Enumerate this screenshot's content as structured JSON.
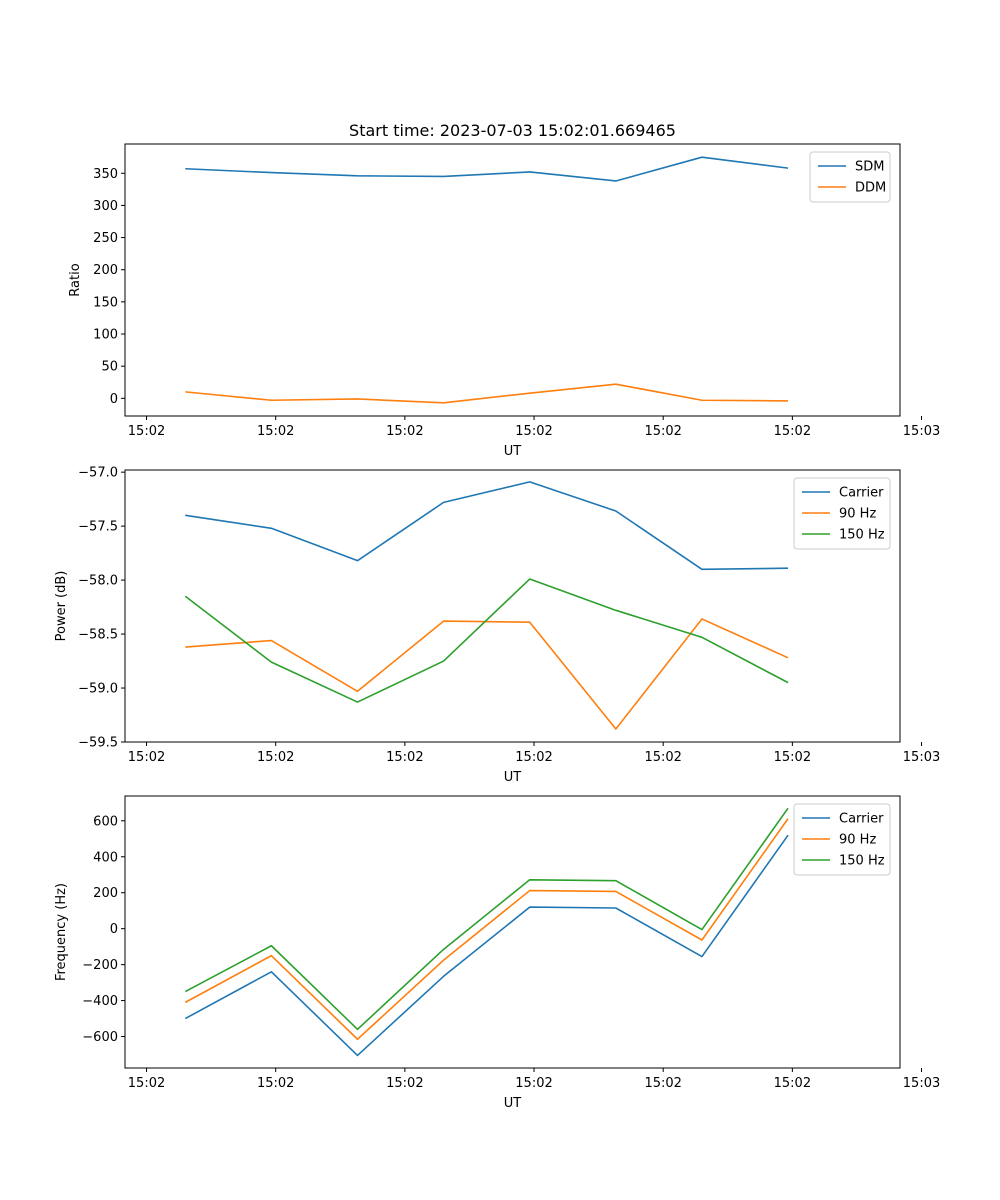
{
  "figure_title": "Start time: 2023-07-03 15:02:01.669465",
  "colors": {
    "blue": "#1f77b4",
    "orange": "#ff7f0e",
    "green": "#2ca02c"
  },
  "chart_data": [
    {
      "type": "line",
      "title": "Start time: 2023-07-03 15:02:01.669465",
      "xlabel": "UT",
      "ylabel": "Ratio",
      "x": [
        1,
        2,
        3,
        4,
        5,
        6,
        7,
        8
      ],
      "xlim": [
        0.3,
        9.3
      ],
      "xticks": [
        0.55,
        2.05,
        3.55,
        5.05,
        6.55,
        8.05,
        9.55
      ],
      "xtick_labels": [
        "15:02",
        "15:02",
        "15:02",
        "15:02",
        "15:02",
        "15:02",
        "15:03"
      ],
      "ylim": [
        -27.5,
        395.5
      ],
      "yticks": [
        0,
        50,
        100,
        150,
        200,
        250,
        300,
        350
      ],
      "ytick_labels": [
        "0",
        "50",
        "100",
        "150",
        "200",
        "250",
        "300",
        "350"
      ],
      "legend_position": "top-right",
      "series": [
        {
          "name": "SDM",
          "color": "#1f77b4",
          "values": [
            357,
            351,
            346,
            345,
            352,
            338,
            375,
            358
          ]
        },
        {
          "name": "DDM",
          "color": "#ff7f0e",
          "values": [
            10,
            -3,
            -1,
            -7,
            8,
            22,
            -3,
            -4
          ]
        }
      ]
    },
    {
      "type": "line",
      "title": "",
      "xlabel": "UT",
      "ylabel": "Power (dB)",
      "x": [
        1,
        2,
        3,
        4,
        5,
        6,
        7,
        8
      ],
      "xlim": [
        0.3,
        9.3
      ],
      "xticks": [
        0.55,
        2.05,
        3.55,
        5.05,
        6.55,
        8.05,
        9.55
      ],
      "xtick_labels": [
        "15:02",
        "15:02",
        "15:02",
        "15:02",
        "15:02",
        "15:02",
        "15:03"
      ],
      "ylim": [
        -59.5,
        -56.98
      ],
      "yticks": [
        -57.0,
        -57.5,
        -58.0,
        -58.5,
        -59.0,
        -59.5
      ],
      "ytick_labels": [
        "−57.0",
        "−57.5",
        "−58.0",
        "−58.5",
        "−59.0",
        "−59.5"
      ],
      "legend_position": "top-right",
      "series": [
        {
          "name": "Carrier",
          "color": "#1f77b4",
          "values": [
            -57.4,
            -57.52,
            -57.82,
            -57.28,
            -57.09,
            -57.36,
            -57.9,
            -57.89
          ]
        },
        {
          "name": "90 Hz",
          "color": "#ff7f0e",
          "values": [
            -58.62,
            -58.56,
            -59.03,
            -58.38,
            -58.39,
            -59.38,
            -58.36,
            -58.72
          ]
        },
        {
          "name": "150 Hz",
          "color": "#2ca02c",
          "values": [
            -58.15,
            -58.76,
            -59.13,
            -58.75,
            -57.99,
            -58.28,
            -58.53,
            -58.95
          ]
        }
      ]
    },
    {
      "type": "line",
      "title": "",
      "xlabel": "UT",
      "ylabel": "Frequency (Hz)",
      "x": [
        1,
        2,
        3,
        4,
        5,
        6,
        7,
        8
      ],
      "xlim": [
        0.3,
        9.3
      ],
      "xticks": [
        0.55,
        2.05,
        3.55,
        5.05,
        6.55,
        8.05,
        9.55
      ],
      "xtick_labels": [
        "15:02",
        "15:02",
        "15:02",
        "15:02",
        "15:02",
        "15:02",
        "15:03"
      ],
      "ylim": [
        -775,
        738
      ],
      "yticks": [
        600,
        400,
        200,
        0,
        -200,
        -400,
        -600
      ],
      "ytick_labels": [
        "600",
        "400",
        "200",
        "0",
        "−200",
        "−400",
        "−600"
      ],
      "legend_position": "top-right",
      "series": [
        {
          "name": "Carrier",
          "color": "#1f77b4",
          "values": [
            -500,
            -240,
            -705,
            -265,
            120,
            115,
            -155,
            520
          ]
        },
        {
          "name": "90 Hz",
          "color": "#ff7f0e",
          "values": [
            -410,
            -150,
            -615,
            -175,
            212,
            207,
            -63,
            612
          ]
        },
        {
          "name": "150 Hz",
          "color": "#2ca02c",
          "values": [
            -350,
            -95,
            -560,
            -115,
            272,
            267,
            -5,
            670
          ]
        }
      ]
    }
  ]
}
